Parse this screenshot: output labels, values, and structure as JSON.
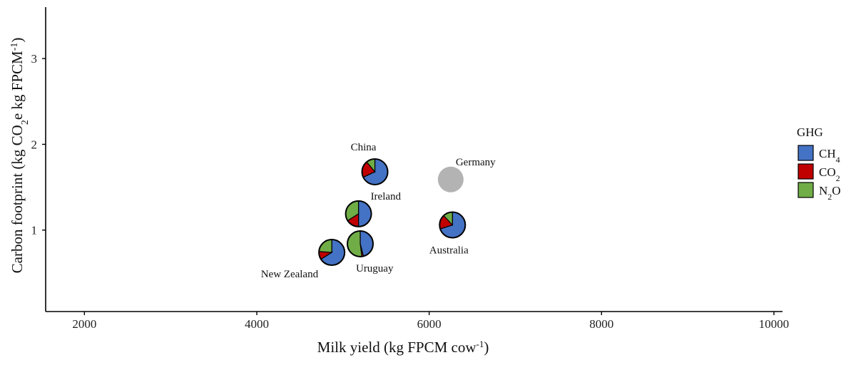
{
  "chart_data": {
    "type": "scatter",
    "marker": "pie",
    "title": "",
    "xlabel": "Milk yield (kg FPCM cow",
    "xlabel_sup": "-1",
    "xlabel_end": ")",
    "ylabel": "Carbon footprint (kg CO",
    "ylabel_sub": "2",
    "ylabel_mid": "e kg FPCM",
    "ylabel_sup": "-1",
    "ylabel_end": ")",
    "xlim": [
      1550,
      10100
    ],
    "ylim": [
      0.05,
      3.6
    ],
    "xticks": [
      2000,
      4000,
      6000,
      8000,
      10000
    ],
    "yticks": [
      1,
      2,
      3
    ],
    "grid": false,
    "legend_position": "right",
    "legend": {
      "title": "GHG",
      "entries": [
        {
          "key": "CH4",
          "base": "CH",
          "sub": "4",
          "after": "",
          "color": "#4472C4"
        },
        {
          "key": "CO2",
          "base": "CO",
          "sub": "2",
          "after": "",
          "color": "#C00000"
        },
        {
          "key": "N2O",
          "base": "N",
          "sub": "2",
          "after": "O",
          "color": "#70AD47"
        }
      ]
    },
    "points": [
      {
        "label": "China",
        "x": 5370,
        "y": 1.68,
        "shares": {
          "CH4": 0.68,
          "CO2": 0.21,
          "N2O": 0.11
        },
        "label_pos": "above"
      },
      {
        "label": "Germany",
        "x": 6250,
        "y": 1.59,
        "shares": null,
        "label_pos": "above-right"
      },
      {
        "label": "Ireland",
        "x": 5180,
        "y": 1.19,
        "shares": {
          "CH4": 0.5,
          "CO2": 0.16,
          "N2O": 0.34
        },
        "label_pos": "above-right"
      },
      {
        "label": "Australia",
        "x": 6270,
        "y": 1.06,
        "shares": {
          "CH4": 0.7,
          "CO2": 0.18,
          "N2O": 0.12
        },
        "label_pos": "below"
      },
      {
        "label": "Uruguay",
        "x": 5200,
        "y": 0.84,
        "shares": {
          "CH4": 0.46,
          "CO2": 0.02,
          "N2O": 0.52
        },
        "label_pos": "below-right"
      },
      {
        "label": "New Zealand",
        "x": 4870,
        "y": 0.74,
        "shares": {
          "CH4": 0.66,
          "CO2": 0.1,
          "N2O": 0.24
        },
        "label_pos": "below-left"
      }
    ],
    "missing_color": "#B3B3B3"
  }
}
